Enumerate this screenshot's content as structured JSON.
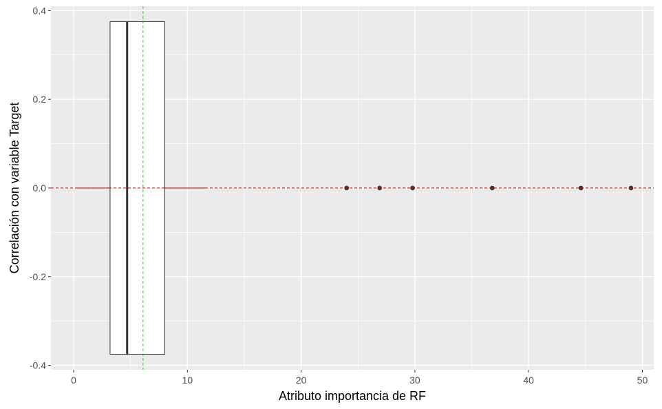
{
  "chart_data": {
    "type": "boxplot",
    "xlabel": "Atributo importancia de RF",
    "ylabel": "Correlación con variable Target",
    "xlim": [
      -2,
      51
    ],
    "ylim": [
      -0.41,
      0.41
    ],
    "x_ticks": [
      {
        "value": 0,
        "label": "0"
      },
      {
        "value": 10,
        "label": "10"
      },
      {
        "value": 20,
        "label": "20"
      },
      {
        "value": 30,
        "label": "30"
      },
      {
        "value": 40,
        "label": "40"
      },
      {
        "value": 50,
        "label": "50"
      }
    ],
    "y_ticks": [
      {
        "value": -0.4,
        "label": "-0.4"
      },
      {
        "value": -0.2,
        "label": "-0.2"
      },
      {
        "value": 0.0,
        "label": "0.0"
      },
      {
        "value": 0.2,
        "label": "0.2"
      },
      {
        "value": 0.4,
        "label": "0.4"
      }
    ],
    "box": {
      "q1": 3.2,
      "median": 4.7,
      "q3": 8.0,
      "whisker_low": 0.2,
      "whisker_high": 11.6,
      "y": 0.0,
      "height_low": -0.375,
      "height_high": 0.375
    },
    "outliers": [
      {
        "x": 24.0,
        "y": 0.0
      },
      {
        "x": 26.9,
        "y": 0.0
      },
      {
        "x": 29.8,
        "y": 0.0
      },
      {
        "x": 36.8,
        "y": 0.0
      },
      {
        "x": 44.6,
        "y": 0.0
      },
      {
        "x": 49.0,
        "y": 0.0
      }
    ],
    "hline": {
      "y": 0.0,
      "color": "#cc0000",
      "style": "dashed"
    },
    "vline": {
      "x": 6.1,
      "color": "#22cc22",
      "style": "dashed"
    },
    "grid": true,
    "colors": {
      "panel": "#ebebeb",
      "grid_major": "#ffffff",
      "box_fill": "#ffffff",
      "box_stroke": "#333333",
      "whisker": "#8b0000",
      "outlier": "#333333"
    }
  }
}
